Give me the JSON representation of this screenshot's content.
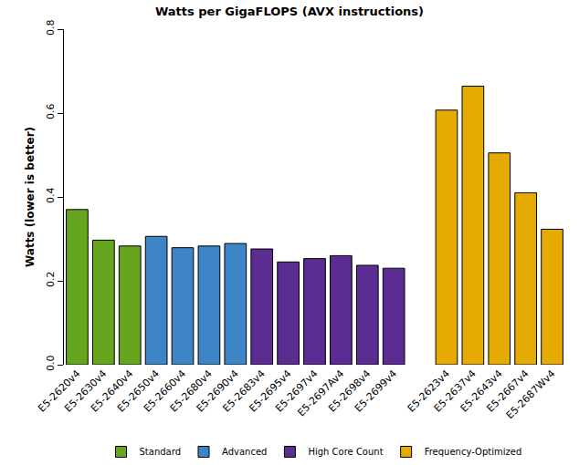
{
  "chart_data": {
    "type": "bar",
    "title": "Watts per GigaFLOPS (AVX instructions)",
    "y_label": "Watts (lower is better)",
    "categories": [
      "E5-2620v4",
      "E5-2630v4",
      "E5-2640v4",
      "E5-2650v4",
      "E5-2660v4",
      "E5-2680v4",
      "E5-2690v4",
      "E5-2683v4",
      "E5-2695v4",
      "E5-2697v4",
      "E5-2697Av4",
      "E5-2698v4",
      "E5-2699v4",
      null,
      "E5-2623v4",
      "E5-2637v4",
      "E5-2643v4",
      "E5-2667v4",
      "E5-2687Wv4"
    ],
    "series": [
      {
        "name": "Standard",
        "color": "#66a61e",
        "values": [
          0.37,
          0.297,
          0.283,
          null,
          null,
          null,
          null,
          null,
          null,
          null,
          null,
          null,
          null,
          null,
          null,
          null,
          null,
          null,
          null
        ]
      },
      {
        "name": "Advanced",
        "color": "#3d85c6",
        "values": [
          null,
          null,
          null,
          0.306,
          0.279,
          0.283,
          0.289,
          null,
          null,
          null,
          null,
          null,
          null,
          null,
          null,
          null,
          null,
          null,
          null
        ]
      },
      {
        "name": "High Core Count",
        "color": "#5b2c91",
        "values": [
          null,
          null,
          null,
          null,
          null,
          null,
          null,
          0.276,
          0.245,
          0.253,
          0.26,
          0.237,
          0.23,
          null,
          null,
          null,
          null,
          null,
          null
        ]
      },
      {
        "name": "Frequency-Optimized",
        "color": "#e6ab02",
        "values": [
          null,
          null,
          null,
          null,
          null,
          null,
          null,
          null,
          null,
          null,
          null,
          null,
          null,
          null,
          0.607,
          0.664,
          0.505,
          0.41,
          0.323
        ]
      }
    ],
    "ylim": [
      0,
      0.8
    ],
    "yticks": [
      {
        "value": 0,
        "label": "0.0"
      },
      0.2,
      0.4,
      0.6,
      0.8
    ],
    "grid": false,
    "legend": "bottom"
  }
}
